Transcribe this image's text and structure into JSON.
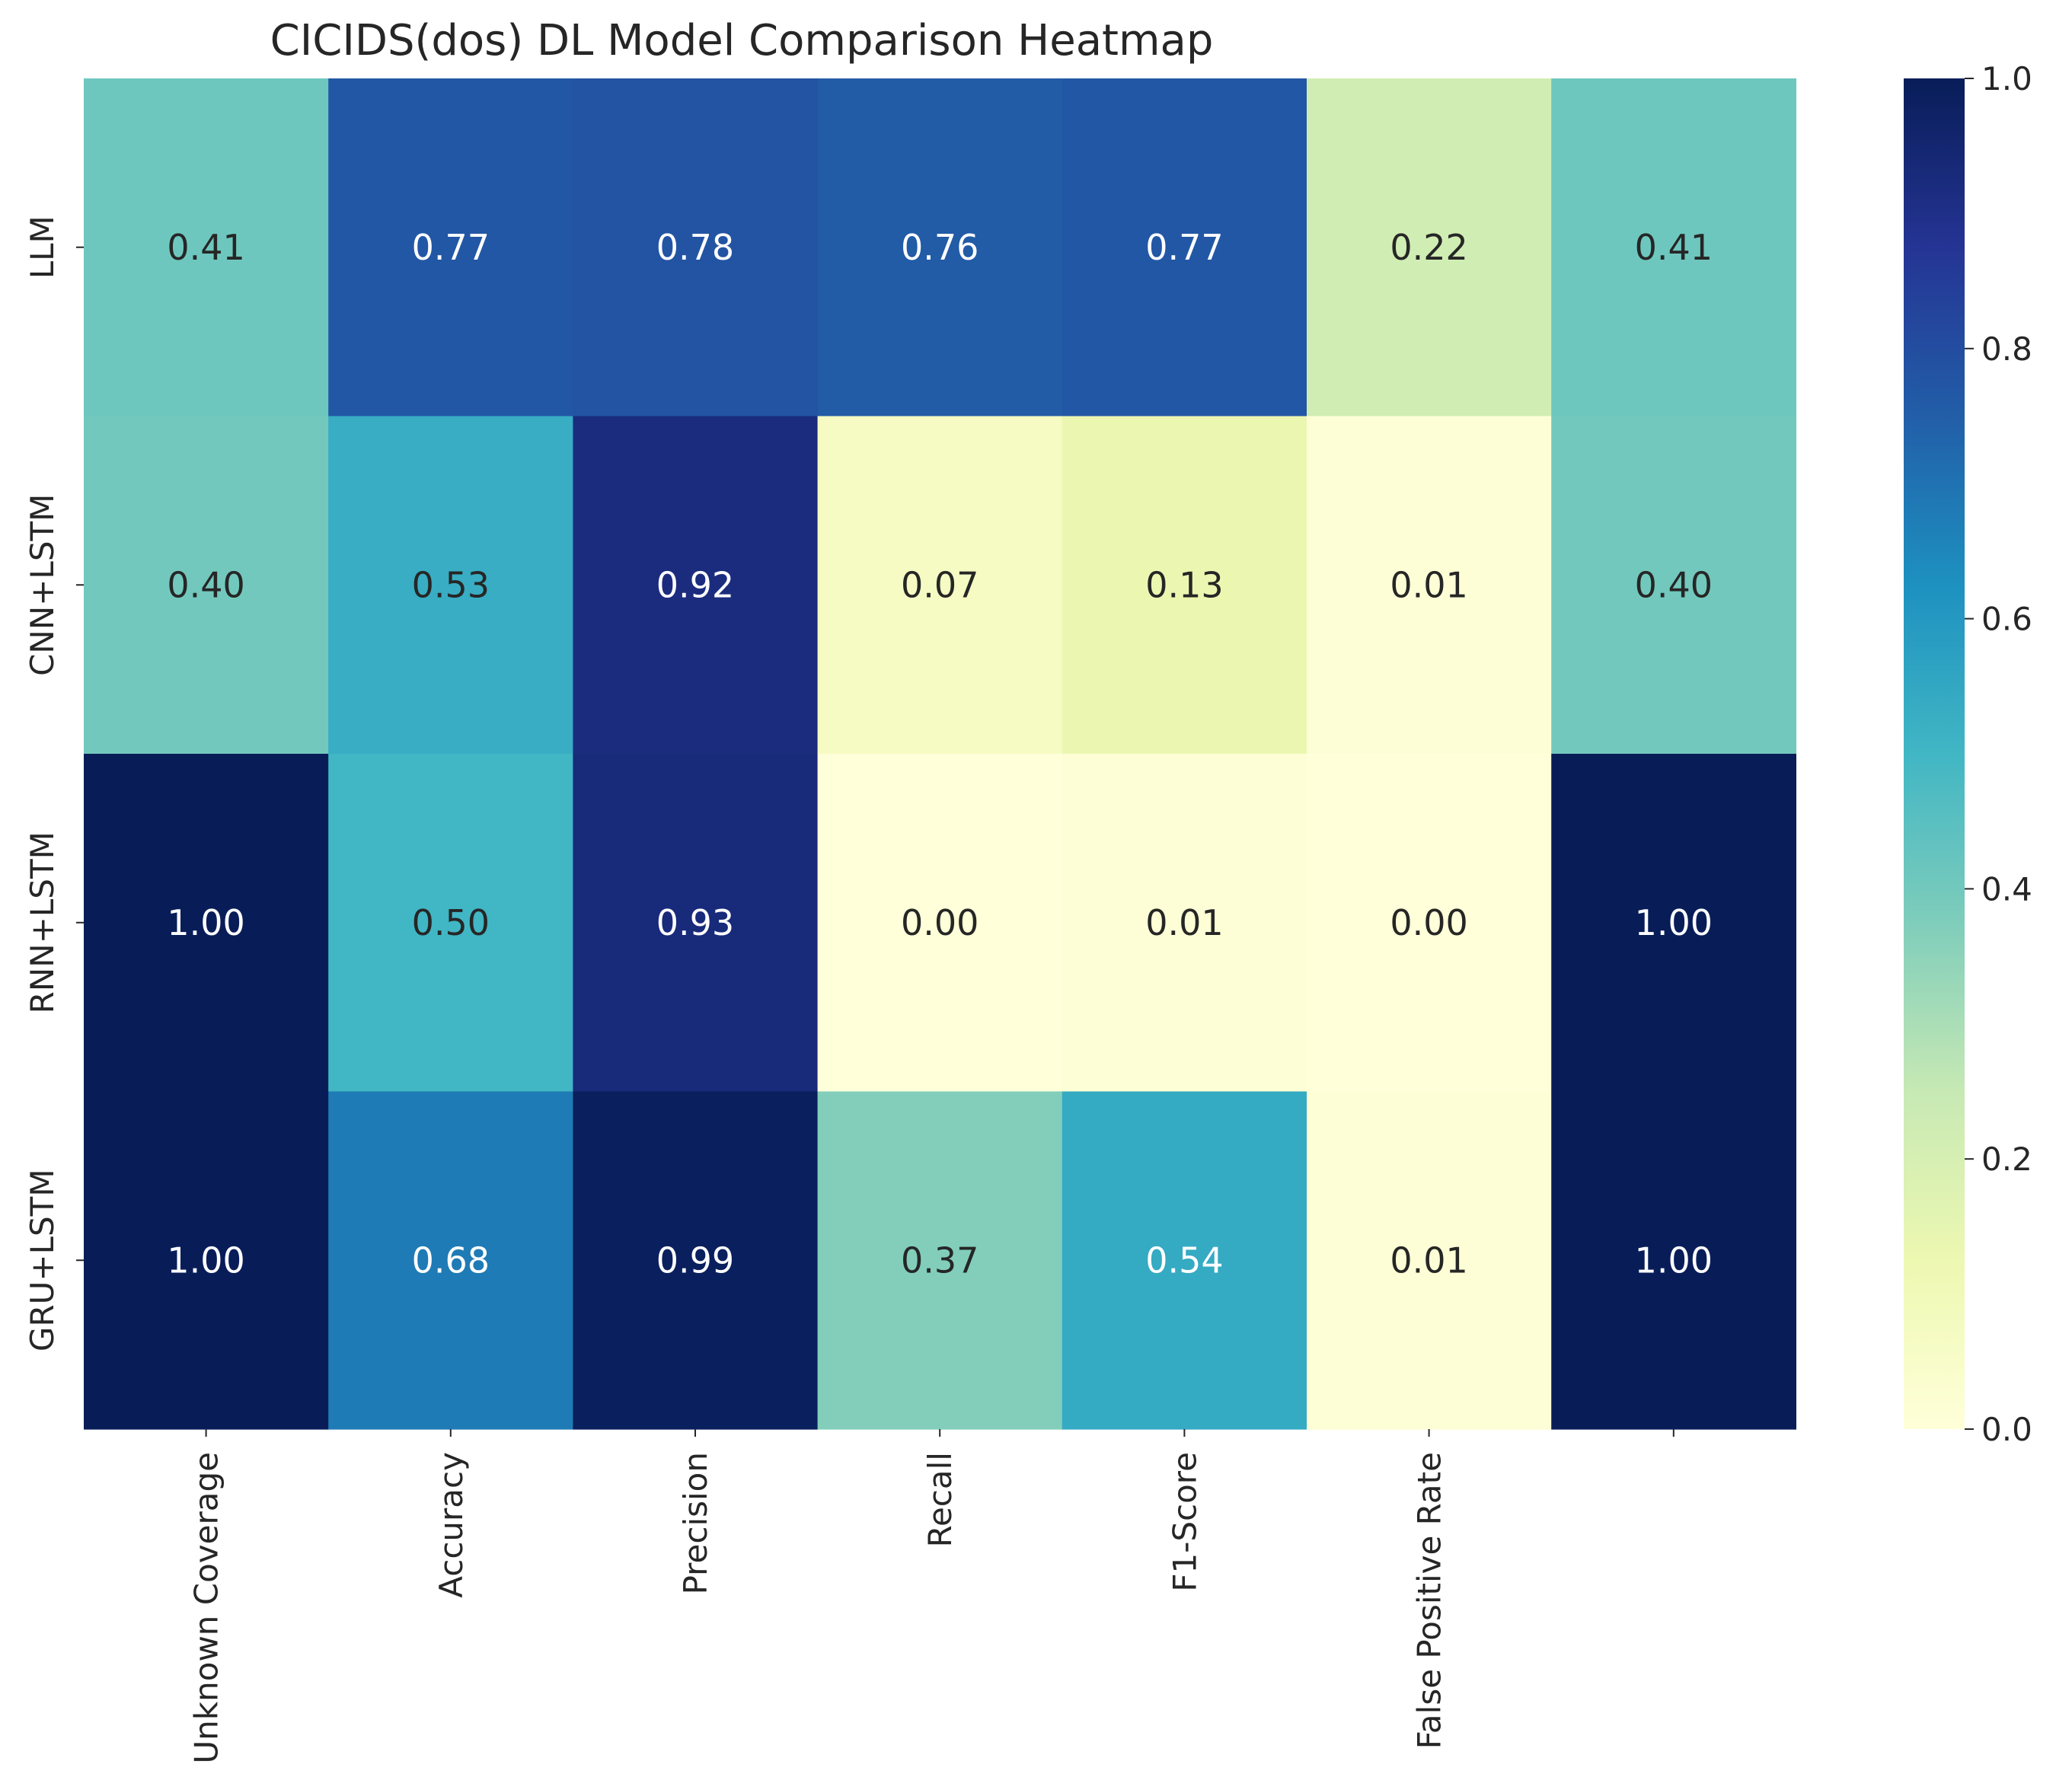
{
  "chart_data": {
    "type": "heatmap",
    "title": "CICIDS(dos) DL Model Comparison Heatmap",
    "xlabel": "",
    "ylabel": "",
    "row_labels": [
      "LLM",
      "CNN+LSTM",
      "RNN+LSTM",
      "GRU+LSTM"
    ],
    "column_labels": [
      "Unknown Coverage",
      "Accuracy",
      "Precision",
      "Recall",
      "F1-Score",
      "False Positive Rate",
      ""
    ],
    "values": [
      [
        0.41,
        0.77,
        0.78,
        0.76,
        0.77,
        0.22,
        0.41
      ],
      [
        0.4,
        0.53,
        0.92,
        0.07,
        0.13,
        0.01,
        0.4
      ],
      [
        1.0,
        0.5,
        0.93,
        0.0,
        0.01,
        0.0,
        1.0
      ],
      [
        1.0,
        0.68,
        0.99,
        0.37,
        0.54,
        0.01,
        1.0
      ]
    ],
    "annotations": [
      [
        "0.41",
        "0.77",
        "0.78",
        "0.76",
        "0.77",
        "0.22",
        "0.41"
      ],
      [
        "0.40",
        "0.53",
        "0.92",
        "0.07",
        "0.13",
        "0.01",
        "0.40"
      ],
      [
        "1.00",
        "0.50",
        "0.93",
        "0.00",
        "0.01",
        "0.00",
        "1.00"
      ],
      [
        "1.00",
        "0.68",
        "0.99",
        "0.37",
        "0.54",
        "0.01",
        "1.00"
      ]
    ],
    "colormap": "YlGnBu",
    "vmin": 0,
    "vmax": 1,
    "colorbar_ticks": [
      "0.0",
      "0.2",
      "0.4",
      "0.6",
      "0.8",
      "1.0"
    ],
    "grid": false,
    "legend": "colorbar-right"
  }
}
